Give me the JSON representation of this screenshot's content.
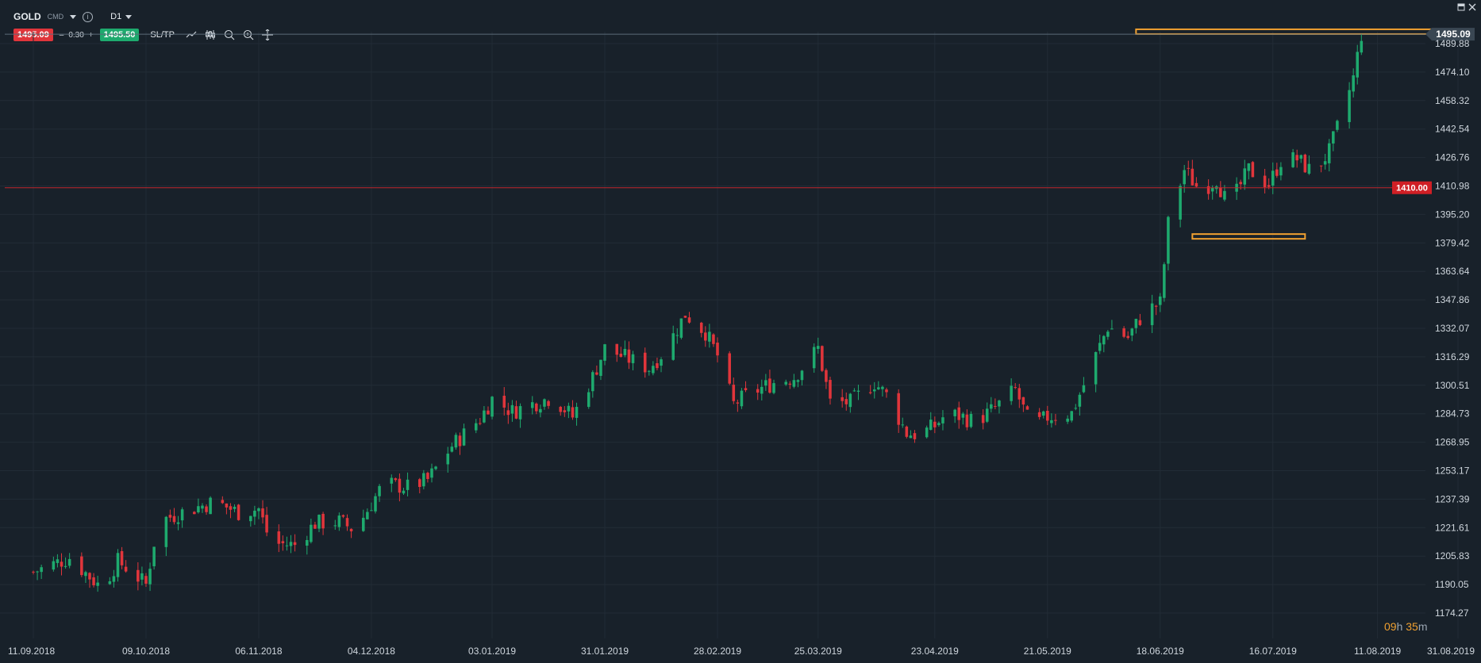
{
  "toolbar": {
    "symbol": "GOLD",
    "symbol_type": "CMD",
    "timeframe": "D1",
    "sell_price": "1495.09",
    "spread_minus": "–",
    "spread_value": "0.30",
    "spread_plus": "+",
    "buy_price": "1495.50",
    "sltp_label": "SL/TP",
    "tool_icons": [
      "line-chart-icon",
      "candlestick-icon",
      "zoom-out-icon",
      "zoom-in-icon",
      "crosshair-icon"
    ]
  },
  "window_controls": [
    "minimize-icon",
    "close-icon"
  ],
  "countdown": {
    "hours": "09",
    "h_unit": "h",
    "minutes": "35",
    "m_unit": "m"
  },
  "colors": {
    "background": "#18212a",
    "up": "#1eaa6e",
    "down": "#e0353b",
    "level": "#f0a030",
    "grid": "#222c36"
  },
  "chart_data": {
    "type": "candlestick",
    "instrument": "GOLD",
    "interval": "D1",
    "current_price": "1495.09",
    "price_line_label": "1410.00",
    "price_line_value": 1410.0,
    "y_ticks": [
      "1489.88",
      "1474.10",
      "1458.32",
      "1442.54",
      "1426.76",
      "1410.98",
      "1395.20",
      "1379.42",
      "1363.64",
      "1347.86",
      "1332.07",
      "1316.29",
      "1300.51",
      "1284.73",
      "1268.95",
      "1253.17",
      "1237.39",
      "1221.61",
      "1205.83",
      "1190.05",
      "1174.27"
    ],
    "x_ticks": [
      "11.09.2018",
      "09.10.2018",
      "06.11.2018",
      "04.12.2018",
      "03.01.2019",
      "31.01.2019",
      "28.02.2019",
      "25.03.2019",
      "23.04.2019",
      "21.05.2019",
      "18.06.2019",
      "16.07.2019",
      "11.08.2019",
      "31.08.2019"
    ],
    "ylim": [
      1174.27,
      1497.5
    ],
    "grid": true,
    "levels": [
      {
        "price": 1496.5,
        "from": "12.06.2019",
        "to": "28.08.2019"
      },
      {
        "price": 1383.0,
        "from": "26.06.2019",
        "to": "24.07.2019"
      }
    ],
    "close_waypoints": [
      [
        "11.09.2018",
        1197
      ],
      [
        "20.09.2018",
        1205
      ],
      [
        "28.09.2018",
        1188
      ],
      [
        "02.10.2018",
        1203
      ],
      [
        "05.10.2018",
        1198
      ],
      [
        "09.10.2018",
        1190
      ],
      [
        "12.10.2018",
        1225
      ],
      [
        "19.10.2018",
        1231
      ],
      [
        "26.10.2018",
        1236
      ],
      [
        "01.11.2018",
        1230
      ],
      [
        "06.11.2018",
        1232
      ],
      [
        "09.11.2018",
        1213
      ],
      [
        "15.11.2018",
        1212
      ],
      [
        "20.11.2018",
        1224
      ],
      [
        "26.11.2018",
        1225
      ],
      [
        "30.11.2018",
        1220
      ],
      [
        "04.12.2018",
        1235
      ],
      [
        "07.12.2018",
        1246
      ],
      [
        "13.12.2018",
        1244
      ],
      [
        "18.12.2018",
        1248
      ],
      [
        "24.12.2018",
        1267
      ],
      [
        "31.12.2018",
        1282
      ],
      [
        "03.01.2019",
        1293
      ],
      [
        "08.01.2019",
        1286
      ],
      [
        "14.01.2019",
        1291
      ],
      [
        "18.01.2019",
        1294
      ],
      [
        "23.01.2019",
        1283
      ],
      [
        "28.01.2019",
        1305
      ],
      [
        "31.01.2019",
        1321
      ],
      [
        "05.02.2019",
        1316
      ],
      [
        "11.02.2019",
        1310
      ],
      [
        "15.02.2019",
        1320
      ],
      [
        "20.02.2019",
        1340
      ],
      [
        "25.02.2019",
        1330
      ],
      [
        "28.02.2019",
        1317
      ],
      [
        "04.03.2019",
        1290
      ],
      [
        "08.03.2019",
        1296
      ],
      [
        "14.03.2019",
        1302
      ],
      [
        "19.03.2019",
        1305
      ],
      [
        "25.03.2019",
        1321
      ],
      [
        "28.03.2019",
        1291
      ],
      [
        "02.04.2019",
        1291
      ],
      [
        "08.04.2019",
        1302
      ],
      [
        "11.04.2019",
        1295
      ],
      [
        "16.04.2019",
        1274
      ],
      [
        "19.04.2019",
        1273
      ],
      [
        "23.04.2019",
        1278
      ],
      [
        "26.04.2019",
        1285
      ],
      [
        "30.04.2019",
        1283
      ],
      [
        "03.05.2019",
        1280
      ],
      [
        "08.05.2019",
        1288
      ],
      [
        "13.05.2019",
        1298
      ],
      [
        "17.05.2019",
        1277
      ],
      [
        "21.05.2019",
        1283
      ],
      [
        "27.05.2019",
        1285
      ],
      [
        "31.05.2019",
        1306
      ],
      [
        "05.06.2019",
        1333
      ],
      [
        "10.06.2019",
        1327
      ],
      [
        "14.06.2019",
        1341
      ],
      [
        "18.06.2019",
        1346
      ],
      [
        "20.06.2019",
        1390
      ],
      [
        "24.06.2019",
        1420
      ],
      [
        "28.06.2019",
        1408
      ],
      [
        "02.07.2019",
        1415
      ],
      [
        "05.07.2019",
        1399
      ],
      [
        "10.07.2019",
        1420
      ],
      [
        "15.07.2019",
        1412
      ],
      [
        "18.07.2019",
        1425
      ],
      [
        "22.07.2019",
        1426
      ],
      [
        "26.07.2019",
        1418
      ],
      [
        "30.07.2019",
        1430
      ],
      [
        "01.08.2019",
        1443
      ],
      [
        "05.08.2019",
        1471
      ],
      [
        "07.08.2019",
        1495
      ]
    ]
  }
}
